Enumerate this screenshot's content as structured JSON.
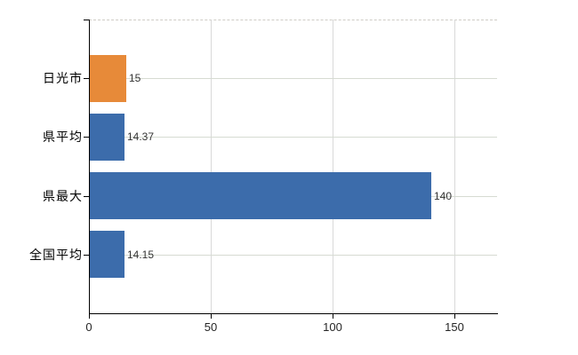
{
  "chart_data": {
    "type": "bar",
    "orientation": "horizontal",
    "title": "",
    "xlabel": "",
    "ylabel": "",
    "categories": [
      "日光市",
      "県平均",
      "県最大",
      "全国平均"
    ],
    "values": [
      15,
      14.37,
      140,
      14.15
    ],
    "value_labels": [
      "15",
      "14.37",
      "140",
      "14.15"
    ],
    "bar_colors": [
      "#e78a39",
      "#3c6cab",
      "#3c6cab",
      "#3c6cab"
    ],
    "xticks": [
      0,
      50,
      100,
      150
    ],
    "xtick_labels": [
      "0",
      "50",
      "100",
      "150"
    ],
    "xlim": [
      0,
      167.5
    ],
    "grid": true,
    "legend": false,
    "series_colors": {
      "highlight_orange": "#e78a39",
      "default_blue": "#3c6cab"
    },
    "style": {
      "gridline_color": "#d6dbd2",
      "axis_color": "#000000",
      "plot_top_border": "dashed",
      "background": "#ffffff"
    }
  }
}
